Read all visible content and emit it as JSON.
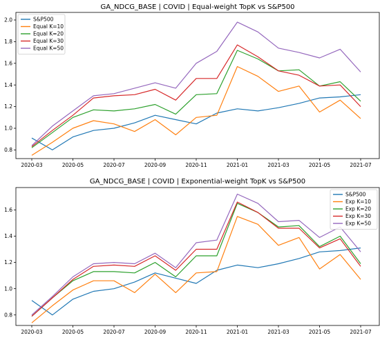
{
  "chart_data": [
    {
      "type": "line",
      "title": "GA_NDCG_BASE | COVID | Equal-weight TopK vs S&P500",
      "xlabel": "",
      "ylabel": "",
      "x": [
        "2020-03",
        "2020-04",
        "2020-05",
        "2020-06",
        "2020-07",
        "2020-08",
        "2020-09",
        "2020-10",
        "2020-11",
        "2020-12",
        "2021-01",
        "2021-02",
        "2021-03",
        "2021-04",
        "2021-05",
        "2021-06",
        "2021-07"
      ],
      "xticks": [
        "2020-03",
        "2020-05",
        "2020-07",
        "2020-09",
        "2020-11",
        "2021-01",
        "2021-03",
        "2021-05",
        "2021-07"
      ],
      "yticks": [
        0.8,
        1.0,
        1.2,
        1.4,
        1.6,
        1.8,
        2.0
      ],
      "ylim": [
        0.72,
        2.07
      ],
      "grid": false,
      "legend_position": "top-left",
      "series": [
        {
          "name": "S&P500",
          "color": "#1f77b4",
          "values": [
            0.91,
            0.8,
            0.92,
            0.98,
            1.0,
            1.05,
            1.12,
            1.08,
            1.04,
            1.14,
            1.18,
            1.16,
            1.19,
            1.23,
            1.28,
            1.29,
            1.31
          ]
        },
        {
          "name": "Equal K=10",
          "color": "#ff7f0e",
          "values": [
            0.75,
            0.87,
            1.0,
            1.07,
            1.04,
            0.97,
            1.08,
            0.94,
            1.1,
            1.12,
            1.57,
            1.48,
            1.34,
            1.39,
            1.15,
            1.26,
            1.09
          ]
        },
        {
          "name": "Equal K=20",
          "color": "#2ca02c",
          "values": [
            0.82,
            0.96,
            1.1,
            1.17,
            1.16,
            1.18,
            1.22,
            1.13,
            1.31,
            1.32,
            1.72,
            1.64,
            1.53,
            1.54,
            1.39,
            1.43,
            1.25
          ]
        },
        {
          "name": "Equal K=30",
          "color": "#d62728",
          "values": [
            0.83,
            0.98,
            1.12,
            1.28,
            1.3,
            1.31,
            1.36,
            1.26,
            1.46,
            1.46,
            1.77,
            1.66,
            1.53,
            1.49,
            1.39,
            1.4,
            1.2
          ]
        },
        {
          "name": "Equal K=50",
          "color": "#9467bd",
          "values": [
            0.84,
            1.02,
            1.16,
            1.3,
            1.32,
            1.37,
            1.42,
            1.37,
            1.6,
            1.71,
            1.98,
            1.89,
            1.74,
            1.7,
            1.65,
            1.73,
            1.52
          ]
        }
      ]
    },
    {
      "type": "line",
      "title": "GA_NDCG_BASE | COVID | Exponential-weight TopK vs S&P500",
      "xlabel": "",
      "ylabel": "",
      "x": [
        "2020-03",
        "2020-04",
        "2020-05",
        "2020-06",
        "2020-07",
        "2020-08",
        "2020-09",
        "2020-10",
        "2020-11",
        "2020-12",
        "2021-01",
        "2021-02",
        "2021-03",
        "2021-04",
        "2021-05",
        "2021-06",
        "2021-07"
      ],
      "xticks": [
        "2020-03",
        "2020-05",
        "2020-07",
        "2020-09",
        "2020-11",
        "2021-01",
        "2021-03",
        "2021-05",
        "2021-07"
      ],
      "yticks": [
        0.8,
        1.0,
        1.2,
        1.4,
        1.6
      ],
      "ylim": [
        0.72,
        1.77
      ],
      "grid": false,
      "legend_position": "top-right",
      "series": [
        {
          "name": "S&P500",
          "color": "#1f77b4",
          "values": [
            0.91,
            0.8,
            0.92,
            0.98,
            1.0,
            1.05,
            1.12,
            1.08,
            1.04,
            1.14,
            1.18,
            1.16,
            1.19,
            1.23,
            1.28,
            1.29,
            1.31
          ]
        },
        {
          "name": "Exp K=10",
          "color": "#ff7f0e",
          "values": [
            0.74,
            0.87,
            0.99,
            1.06,
            1.06,
            0.97,
            1.11,
            0.97,
            1.12,
            1.13,
            1.55,
            1.49,
            1.33,
            1.39,
            1.15,
            1.26,
            1.07
          ]
        },
        {
          "name": "Exp K=20",
          "color": "#2ca02c",
          "values": [
            0.79,
            0.93,
            1.06,
            1.13,
            1.13,
            1.12,
            1.2,
            1.09,
            1.25,
            1.25,
            1.65,
            1.58,
            1.47,
            1.48,
            1.32,
            1.4,
            1.19
          ]
        },
        {
          "name": "Exp K=30",
          "color": "#d62728",
          "values": [
            0.79,
            0.93,
            1.07,
            1.17,
            1.18,
            1.17,
            1.25,
            1.14,
            1.3,
            1.3,
            1.66,
            1.58,
            1.46,
            1.46,
            1.31,
            1.38,
            1.17
          ]
        },
        {
          "name": "Exp K=50",
          "color": "#9467bd",
          "values": [
            0.8,
            0.94,
            1.09,
            1.19,
            1.2,
            1.19,
            1.27,
            1.16,
            1.35,
            1.37,
            1.72,
            1.65,
            1.51,
            1.52,
            1.39,
            1.47,
            1.28
          ]
        }
      ]
    }
  ]
}
